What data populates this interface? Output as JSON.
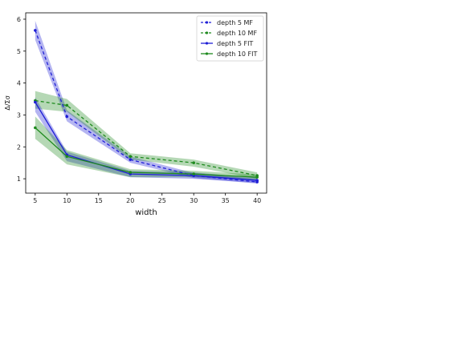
{
  "chart_data": {
    "type": "line",
    "xlabel": "width",
    "ylabel": "Δ/Σσ",
    "x": [
      5,
      10,
      20,
      30,
      40
    ],
    "xticks": [
      5,
      10,
      15,
      20,
      25,
      30,
      35,
      40
    ],
    "yticks": [
      1,
      2,
      3,
      4,
      5,
      6
    ],
    "xlim": [
      3.5,
      41.5
    ],
    "ylim": [
      0.55,
      6.2
    ],
    "grid": false,
    "legend_position": "top-right",
    "series": [
      {
        "name": "depth 5 MF",
        "color": "#1f1fd6",
        "dash": "dashed",
        "values": [
          5.65,
          2.95,
          1.6,
          1.1,
          0.9
        ],
        "lower": [
          5.35,
          2.8,
          1.5,
          1.02,
          0.85
        ],
        "upper": [
          5.95,
          3.15,
          1.7,
          1.18,
          0.98
        ]
      },
      {
        "name": "depth 10 MF",
        "color": "#1e8a1e",
        "dash": "dashed",
        "values": [
          3.45,
          3.3,
          1.7,
          1.5,
          1.1
        ],
        "lower": [
          3.2,
          3.1,
          1.6,
          1.38,
          1.0
        ],
        "upper": [
          3.75,
          3.5,
          1.8,
          1.6,
          1.2
        ]
      },
      {
        "name": "depth 5 FIT",
        "color": "#1f1fd6",
        "dash": "solid",
        "values": [
          3.4,
          1.75,
          1.15,
          1.1,
          0.95
        ],
        "lower": [
          3.1,
          1.55,
          1.05,
          1.0,
          0.87
        ],
        "upper": [
          3.55,
          1.85,
          1.25,
          1.2,
          1.03
        ]
      },
      {
        "name": "depth 10 FIT",
        "color": "#1e8a1e",
        "dash": "solid",
        "values": [
          2.6,
          1.7,
          1.2,
          1.15,
          1.05
        ],
        "lower": [
          2.25,
          1.45,
          1.05,
          1.05,
          0.97
        ],
        "upper": [
          2.95,
          1.9,
          1.3,
          1.25,
          1.13
        ]
      }
    ]
  }
}
